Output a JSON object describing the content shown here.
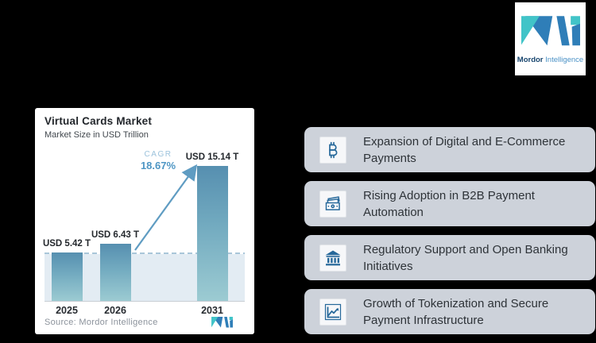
{
  "page": {
    "background": "#000000"
  },
  "brand": {
    "name_bold": "Mordor",
    "name_light": "Intelligence"
  },
  "chart_panel": {
    "title": "Virtual Cards Market",
    "subtitle": "Market Size in USD Trillion",
    "source": "Source: Mordor Intelligence"
  },
  "chart_data": {
    "type": "bar",
    "title": "Virtual Cards Market",
    "subtitle": "Market Size in USD Trillion",
    "unit": "USD Trillion",
    "categories": [
      "2025",
      "2026",
      "2031"
    ],
    "values": [
      5.42,
      6.43,
      15.14
    ],
    "value_labels": [
      "USD 5.42 T",
      "USD 6.43 T",
      "USD 15.14 T"
    ],
    "annotations": {
      "cagr_label": "CAGR",
      "cagr_value": "18.67%"
    },
    "reference_line_value": 5.42,
    "layout": {
      "grid": false,
      "dashed_reference_line": true,
      "growth_arrow": "2026 to 2031"
    },
    "colors": {
      "bar_top": "#568fb0",
      "bar_bottom": "#9ccbd2",
      "band": "#e3ecf3",
      "dashed_line": "#a9c6d9",
      "accent_blue": "#4e96c4"
    }
  },
  "drivers": {
    "icon_color": "#26689a",
    "row_background": "#cdd2da",
    "items": [
      {
        "icon": "bitcoin-icon",
        "label": "Expansion of Digital and E-Commerce Payments"
      },
      {
        "icon": "banknotes-icon",
        "label": "Rising Adoption in B2B Payment Automation"
      },
      {
        "icon": "bank-icon",
        "label": "Regulatory Support and Open Banking Initiatives"
      },
      {
        "icon": "chart-growth-icon",
        "label": "Growth of Tokenization and Secure Payment Infrastructure"
      }
    ]
  }
}
